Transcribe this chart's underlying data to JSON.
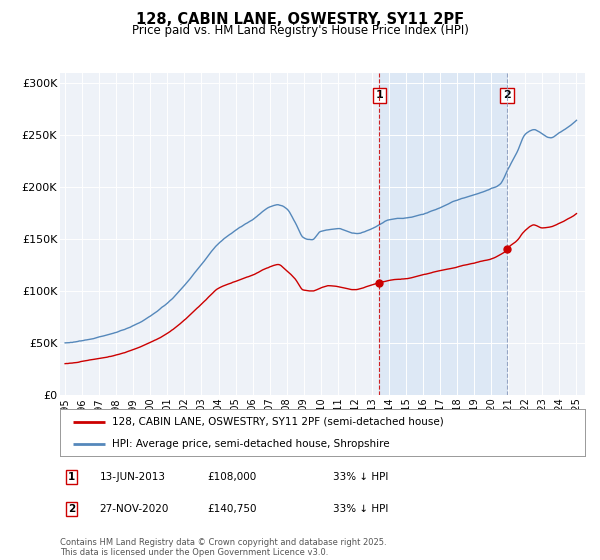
{
  "title": "128, CABIN LANE, OSWESTRY, SY11 2PF",
  "subtitle": "Price paid vs. HM Land Registry's House Price Index (HPI)",
  "background_color": "#ffffff",
  "plot_bg_color": "#eef2f8",
  "grid_color": "#ffffff",
  "red_line_color": "#cc0000",
  "blue_line_color": "#5588bb",
  "shade_color": "#dde8f5",
  "marker1_x_year": 2013.44,
  "marker2_x_year": 2020.92,
  "marker1_label": "1",
  "marker2_label": "2",
  "marker1_y_red": 108000,
  "marker2_y_red": 140750,
  "legend_entry1": "128, CABIN LANE, OSWESTRY, SY11 2PF (semi-detached house)",
  "legend_entry2": "HPI: Average price, semi-detached house, Shropshire",
  "table_row1": [
    "1",
    "13-JUN-2013",
    "£108,000",
    "33% ↓ HPI"
  ],
  "table_row2": [
    "2",
    "27-NOV-2020",
    "£140,750",
    "33% ↓ HPI"
  ],
  "footer": "Contains HM Land Registry data © Crown copyright and database right 2025.\nThis data is licensed under the Open Government Licence v3.0.",
  "ylim": [
    0,
    310000
  ],
  "yticks": [
    0,
    50000,
    100000,
    150000,
    200000,
    250000,
    300000
  ],
  "ytick_labels": [
    "£0",
    "£50K",
    "£100K",
    "£150K",
    "£200K",
    "£250K",
    "£300K"
  ],
  "xmin": 1994.7,
  "xmax": 2025.5
}
